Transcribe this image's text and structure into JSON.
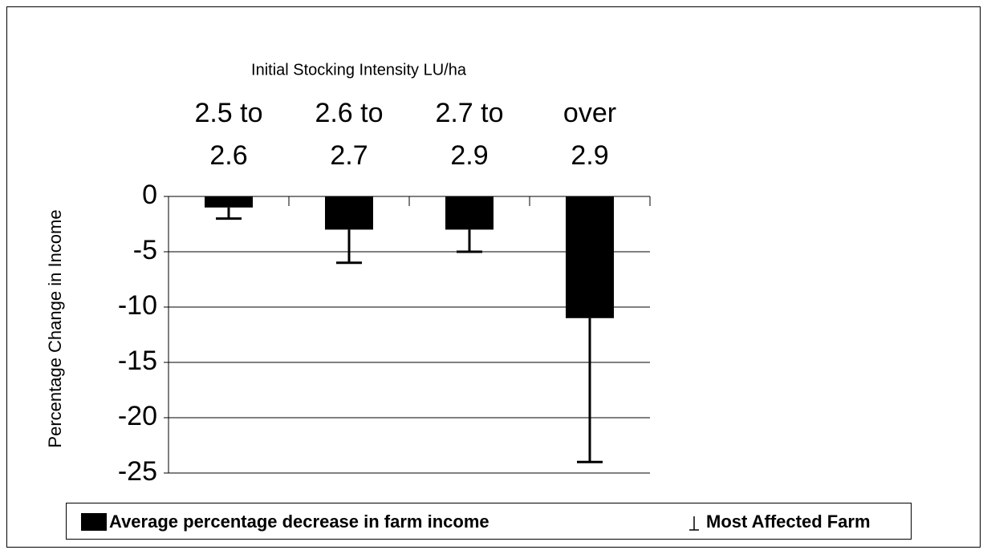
{
  "chart_data": {
    "type": "bar",
    "title": "Initial Stocking Intensity LU/ha",
    "y_label": "Percentage Change in Income",
    "categories": [
      "2.5 to 2.6",
      "2.6 to 2.7",
      "2.7 to 2.9",
      "over 2.9"
    ],
    "series": [
      {
        "name": "Average percentage decrease in farm income",
        "color": "#000000",
        "values": [
          -1,
          -3,
          -3,
          -11
        ]
      },
      {
        "name": "Most Affected Farm",
        "color": "#000000",
        "values": [
          -2,
          -6,
          -5,
          -24
        ]
      }
    ],
    "ylim": [
      -25,
      0
    ],
    "yticks": [
      0,
      -5,
      -10,
      -15,
      -20,
      -25
    ],
    "grid": true
  }
}
